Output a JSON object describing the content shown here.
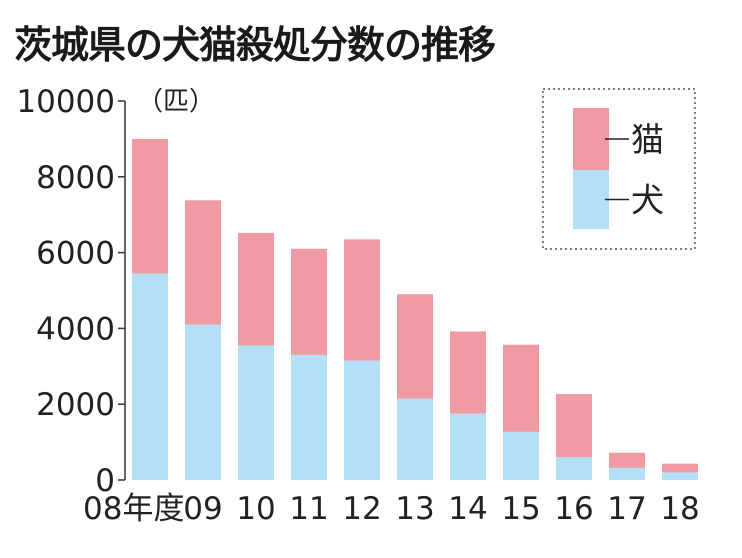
{
  "chart_data": {
    "type": "bar",
    "stacked": true,
    "title": "茨城県の犬猫殺処分数の推移",
    "unit_label": "（匹）",
    "categories": [
      "08年度",
      "09",
      "10",
      "11",
      "12",
      "13",
      "14",
      "15",
      "16",
      "17",
      "18"
    ],
    "series": [
      {
        "name": "犬",
        "color": "#b3e0f5",
        "values": [
          5450,
          4100,
          3550,
          3300,
          3150,
          2150,
          1750,
          1270,
          600,
          320,
          200
        ]
      },
      {
        "name": "猫",
        "color": "#f09aa4",
        "values": [
          3550,
          3280,
          2970,
          2800,
          3200,
          2750,
          2170,
          2300,
          1670,
          400,
          230
        ]
      }
    ],
    "yticks": [
      0,
      2000,
      4000,
      6000,
      8000,
      10000
    ],
    "ylim": [
      0,
      10000
    ],
    "grid": false,
    "legend_position": "top-right",
    "legend_order": [
      "猫",
      "犬"
    ]
  }
}
